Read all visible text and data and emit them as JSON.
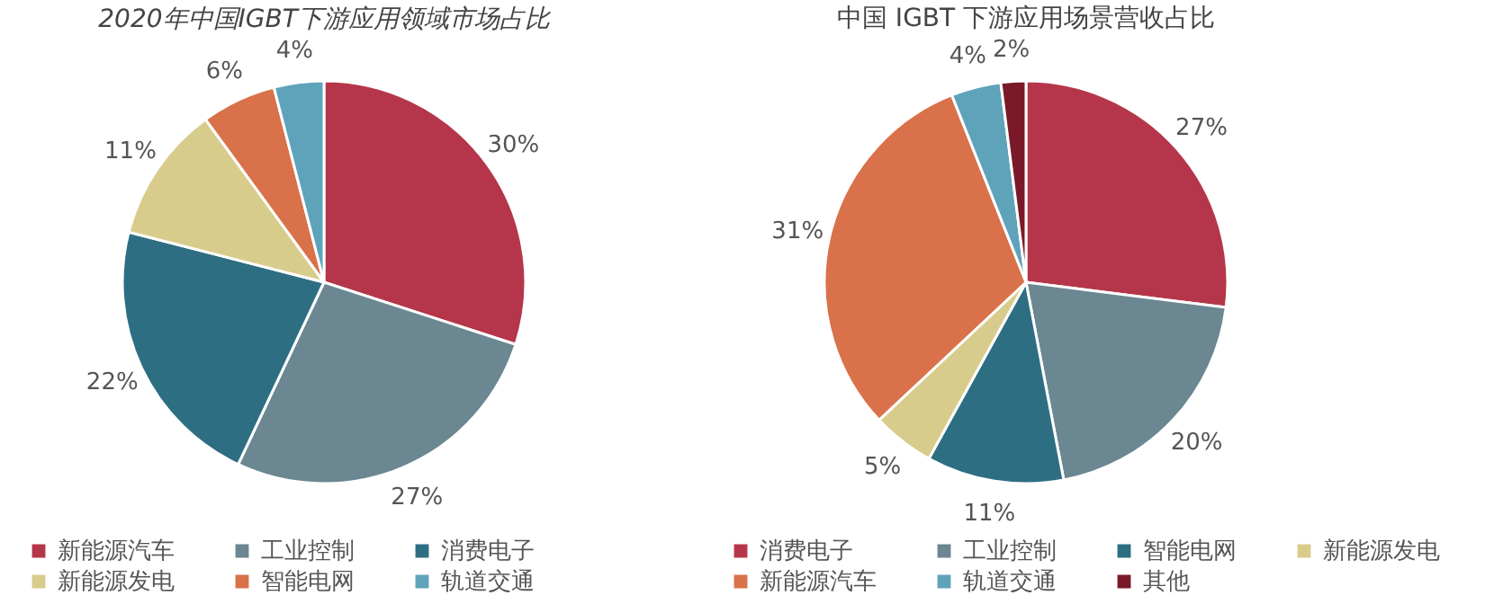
{
  "chart_data": [
    {
      "type": "pie",
      "title": "2020年中国IGBT下游应用领域市场占比",
      "categories": [
        "新能源汽车",
        "工业控制",
        "消费电子",
        "新能源发电",
        "智能电网",
        "轨道交通"
      ],
      "values": [
        30,
        27,
        22,
        11,
        6,
        4
      ],
      "value_labels": [
        "30%",
        "27%",
        "22%",
        "11%",
        "6%",
        "4%"
      ],
      "colors": [
        "#b5364a",
        "#6b8791",
        "#2e6e82",
        "#d8cc8c",
        "#d9714a",
        "#5fa3bb"
      ],
      "legend": "bottom"
    },
    {
      "type": "pie",
      "title": "中国 IGBT 下游应用场景营收占比",
      "categories": [
        "消费电子",
        "工业控制",
        "智能电网",
        "新能源发电",
        "新能源汽车",
        "轨道交通",
        "其他"
      ],
      "values": [
        27,
        20,
        11,
        5,
        31,
        4,
        2
      ],
      "value_labels": [
        "27%",
        "20%",
        "11%",
        "5%",
        "31%",
        "4%",
        "2%"
      ],
      "colors": [
        "#b5364a",
        "#6b8791",
        "#2e6e82",
        "#d8cc8c",
        "#d9714a",
        "#5fa3bb",
        "#7a1a28"
      ],
      "legend": "bottom"
    }
  ]
}
